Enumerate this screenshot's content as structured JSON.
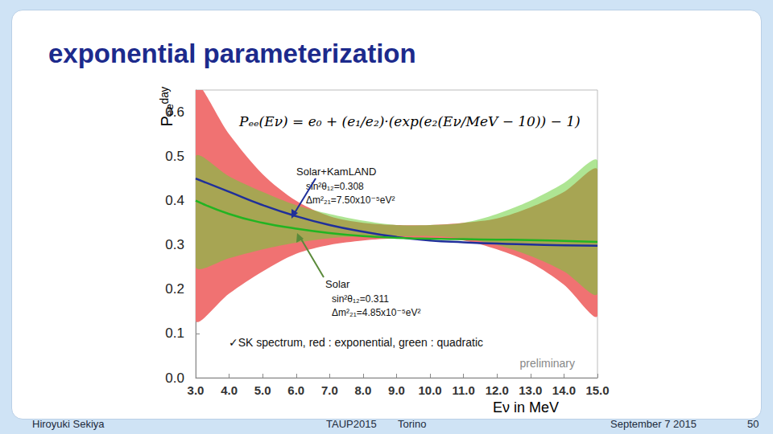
{
  "slide": {
    "title": "exponential parameterization",
    "footer": {
      "author": "Hiroyuki Sekiya",
      "event": "TAUP2015",
      "place": "Torino",
      "date": "September 7 2015",
      "page": "50"
    }
  },
  "chart_data": {
    "type": "line",
    "xlabel": "Eν in MeV",
    "ylabel": "Pₑₑᵈᵃʸ",
    "formula": "Pₑₑ(Eν) = e₀ + (e₁/e₂)·(exp(e₂(Eν/MeV − 10)) − 1)",
    "annotations": {
      "solar_kamland": [
        "Solar+KamLAND",
        "sin²θ₁₂=0.308",
        "Δm²₂₁=7.50x10⁻⁵eV²"
      ],
      "solar": [
        "Solar",
        "sin²θ₁₂=0.311",
        "Δm²₂₁=4.85x10⁻⁵eV²"
      ],
      "note": "✓SK spectrum, red : exponential, green : quadratic",
      "status": "preliminary"
    },
    "x": [
      3,
      4,
      5,
      6,
      7,
      8,
      9,
      10,
      11,
      12,
      13,
      14,
      15
    ],
    "bands": [
      {
        "name": "exponential",
        "color": "#f07272",
        "upper": [
          0.66,
          0.55,
          0.46,
          0.4,
          0.365,
          0.35,
          0.345,
          0.345,
          0.35,
          0.36,
          0.385,
          0.42,
          0.47
        ],
        "lower": [
          0.13,
          0.19,
          0.24,
          0.28,
          0.3,
          0.31,
          0.315,
          0.315,
          0.31,
          0.29,
          0.26,
          0.21,
          0.14
        ]
      },
      {
        "name": "quadratic",
        "color": "#6ccf3a",
        "upper": [
          0.5,
          0.455,
          0.42,
          0.39,
          0.37,
          0.355,
          0.345,
          0.345,
          0.35,
          0.37,
          0.4,
          0.44,
          0.49
        ],
        "lower": [
          0.25,
          0.27,
          0.29,
          0.305,
          0.315,
          0.32,
          0.32,
          0.32,
          0.315,
          0.3,
          0.275,
          0.24,
          0.19
        ]
      }
    ],
    "series": [
      {
        "name": "Solar+KamLAND",
        "color": "#1f2f9a",
        "line_style": "solid",
        "values": [
          0.45,
          0.42,
          0.39,
          0.365,
          0.345,
          0.33,
          0.318,
          0.31,
          0.306,
          0.303,
          0.301,
          0.299,
          0.298
        ]
      },
      {
        "name": "Solar",
        "color": "#22b422",
        "line_style": "solid",
        "values": [
          0.4,
          0.37,
          0.35,
          0.337,
          0.327,
          0.32,
          0.316,
          0.314,
          0.313,
          0.312,
          0.311,
          0.309,
          0.307
        ]
      }
    ],
    "xlim": [
      3,
      15
    ],
    "xticks": [
      {
        "value": 3,
        "label": "3.0"
      },
      {
        "value": 4,
        "label": "4.0"
      },
      {
        "value": 5,
        "label": "5.0"
      },
      {
        "value": 6,
        "label": "6.0"
      },
      {
        "value": 7,
        "label": "7.0"
      },
      {
        "value": 8,
        "label": "8.0"
      },
      {
        "value": 9,
        "label": "9.0"
      },
      {
        "value": 10,
        "label": "10.0"
      },
      {
        "value": 11,
        "label": "11.0"
      },
      {
        "value": 12,
        "label": "12.0"
      },
      {
        "value": 13,
        "label": "13.0"
      },
      {
        "value": 14,
        "label": "14.0"
      },
      {
        "value": 15,
        "label": "15.0"
      }
    ],
    "ylim": [
      0,
      0.65
    ],
    "yticks": [
      {
        "value": 0,
        "label": "0.0"
      },
      0.1,
      0.2,
      0.3,
      0.4,
      0.5,
      0.6
    ],
    "grid": false
  }
}
